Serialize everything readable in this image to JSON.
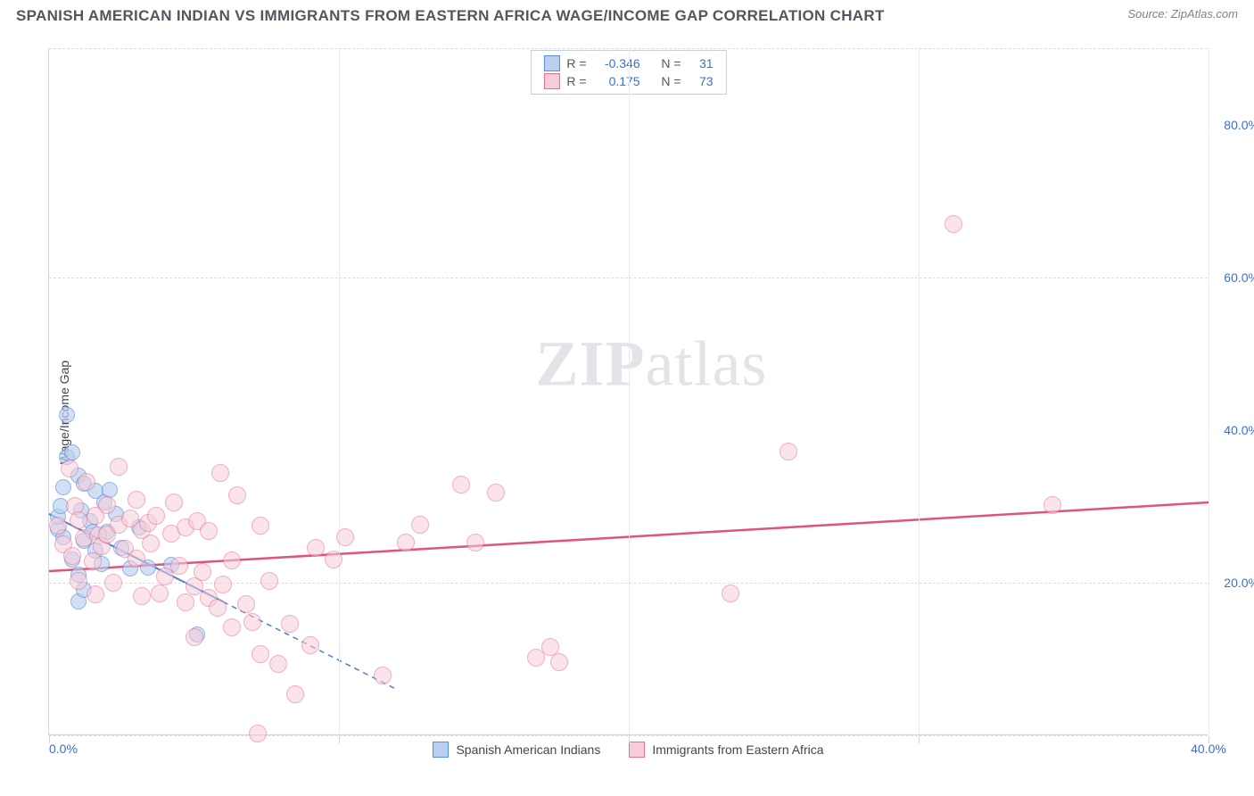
{
  "header": {
    "title": "SPANISH AMERICAN INDIAN VS IMMIGRANTS FROM EASTERN AFRICA WAGE/INCOME GAP CORRELATION CHART",
    "source_label": "Source: ",
    "source_name": "ZipAtlas.com"
  },
  "chart": {
    "type": "scatter",
    "ylabel": "Wage/Income Gap",
    "background_color": "#ffffff",
    "grid_color": "#d9dde2",
    "axis_color": "#cfd4da",
    "tick_label_color": "#3a6fd8",
    "xlim": [
      0,
      40
    ],
    "ylim": [
      0,
      90
    ],
    "x_ticks": [
      0,
      10,
      20,
      30,
      40
    ],
    "x_tick_labels": [
      "0.0%",
      "",
      "",
      "",
      "40.0%"
    ],
    "y_ticks": [
      20,
      40,
      60,
      80
    ],
    "y_tick_labels": [
      "20.0%",
      "40.0%",
      "60.0%",
      "80.0%"
    ],
    "y_grid": [
      0,
      20,
      60,
      90
    ],
    "watermark_bold": "ZIP",
    "watermark_rest": "atlas",
    "series": [
      {
        "name": "Spanish American Indians",
        "fill": "#b9d0f0",
        "stroke": "#5a8ddb",
        "marker_radius": 9,
        "marker_opacity": 0.65,
        "R": "-0.346",
        "N": "31",
        "trend": {
          "x1": 0,
          "y1": 29,
          "x2": 6,
          "y2": 17.5,
          "extend_x2": 12,
          "extend_y2": 6,
          "color": "#4a7fd0",
          "width": 2,
          "dash_extend": true
        },
        "points": [
          [
            0.3,
            27
          ],
          [
            0.3,
            28.6
          ],
          [
            0.4,
            30
          ],
          [
            0.5,
            26
          ],
          [
            0.5,
            32.5
          ],
          [
            0.6,
            36.5
          ],
          [
            0.6,
            42
          ],
          [
            0.8,
            23
          ],
          [
            0.8,
            37
          ],
          [
            1.0,
            17.5
          ],
          [
            1.0,
            21
          ],
          [
            1.0,
            34
          ],
          [
            1.1,
            29.5
          ],
          [
            1.2,
            19
          ],
          [
            1.2,
            25.5
          ],
          [
            1.2,
            33
          ],
          [
            1.4,
            28
          ],
          [
            1.5,
            26.6
          ],
          [
            1.6,
            24.2
          ],
          [
            1.6,
            32
          ],
          [
            1.8,
            22.5
          ],
          [
            1.9,
            30.5
          ],
          [
            2.0,
            26.7
          ],
          [
            2.1,
            32.2
          ],
          [
            2.3,
            29
          ],
          [
            2.5,
            24.5
          ],
          [
            2.8,
            21.8
          ],
          [
            3.1,
            27.2
          ],
          [
            3.4,
            22
          ],
          [
            4.2,
            22.3
          ],
          [
            5.1,
            13.2
          ]
        ]
      },
      {
        "name": "Immigrants from Eastern Africa",
        "fill": "#f6cdd8",
        "stroke": "#e66f92",
        "marker_radius": 10,
        "marker_opacity": 0.55,
        "R": "0.175",
        "N": "73",
        "trend": {
          "x1": 0,
          "y1": 21.5,
          "x2": 40,
          "y2": 30.5,
          "color": "#e0537d",
          "width": 2.5,
          "dash_extend": false
        },
        "points": [
          [
            0.3,
            27.5
          ],
          [
            0.5,
            25
          ],
          [
            0.7,
            35
          ],
          [
            0.8,
            23.5
          ],
          [
            0.9,
            30
          ],
          [
            1.0,
            20.2
          ],
          [
            1.0,
            28.2
          ],
          [
            1.2,
            25.8
          ],
          [
            1.3,
            33.2
          ],
          [
            1.5,
            22.8
          ],
          [
            1.6,
            18.5
          ],
          [
            1.6,
            28.8
          ],
          [
            1.7,
            26.2
          ],
          [
            1.8,
            24.8
          ],
          [
            2.0,
            26.3
          ],
          [
            2.0,
            30.2
          ],
          [
            2.2,
            20
          ],
          [
            2.4,
            27.6
          ],
          [
            2.4,
            35.2
          ],
          [
            2.6,
            24.4
          ],
          [
            2.8,
            28.4
          ],
          [
            3.0,
            23.1
          ],
          [
            3.0,
            30.8
          ],
          [
            3.2,
            18.2
          ],
          [
            3.2,
            26.9
          ],
          [
            3.4,
            27.8
          ],
          [
            3.5,
            25.1
          ],
          [
            3.7,
            28.8
          ],
          [
            3.8,
            18.6
          ],
          [
            4.0,
            20.8
          ],
          [
            4.2,
            26.4
          ],
          [
            4.3,
            30.5
          ],
          [
            4.5,
            22.2
          ],
          [
            4.7,
            17.4
          ],
          [
            4.7,
            27.2
          ],
          [
            5.0,
            12.8
          ],
          [
            5.0,
            19.5
          ],
          [
            5.1,
            28.1
          ],
          [
            5.3,
            21.4
          ],
          [
            5.5,
            18
          ],
          [
            5.5,
            26.8
          ],
          [
            5.8,
            16.7
          ],
          [
            5.9,
            34.4
          ],
          [
            6.0,
            19.8
          ],
          [
            6.3,
            14.2
          ],
          [
            6.3,
            22.9
          ],
          [
            6.5,
            31.5
          ],
          [
            6.8,
            17.2
          ],
          [
            7.0,
            14.8
          ],
          [
            7.3,
            10.6
          ],
          [
            7.3,
            27.5
          ],
          [
            7.6,
            20.2
          ],
          [
            7.9,
            9.4
          ],
          [
            8.3,
            14.6
          ],
          [
            8.5,
            5.4
          ],
          [
            9.0,
            11.8
          ],
          [
            9.2,
            24.6
          ],
          [
            9.8,
            23
          ],
          [
            10.2,
            26
          ],
          [
            11.5,
            7.8
          ],
          [
            12.3,
            25.2
          ],
          [
            12.8,
            27.6
          ],
          [
            14.2,
            32.8
          ],
          [
            14.7,
            25.2
          ],
          [
            15.4,
            31.8
          ],
          [
            16.8,
            10.2
          ],
          [
            17.3,
            11.6
          ],
          [
            17.6,
            9.6
          ],
          [
            23.5,
            18.6
          ],
          [
            25.5,
            37.2
          ],
          [
            31.2,
            67
          ],
          [
            34.6,
            30.2
          ],
          [
            7.2,
            0.2
          ]
        ]
      }
    ],
    "stats_labels": {
      "R": "R =",
      "N": "N ="
    },
    "legend_labels": [
      "Spanish American Indians",
      "Immigrants from Eastern Africa"
    ]
  }
}
